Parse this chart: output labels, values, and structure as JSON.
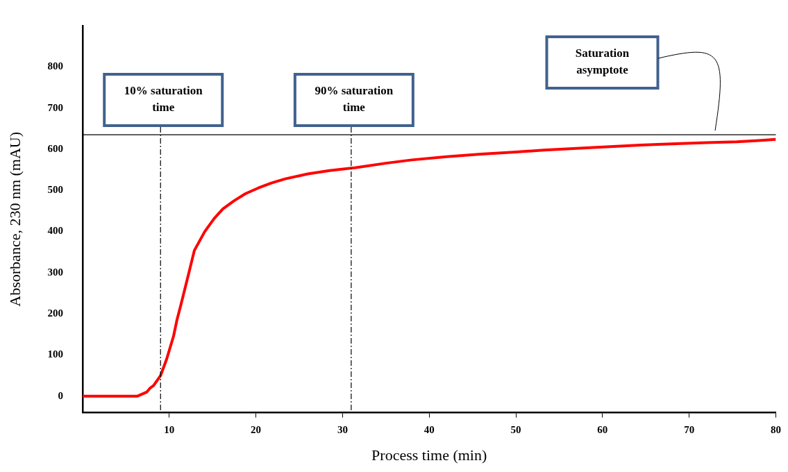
{
  "chart_data": {
    "type": "line",
    "xlabel": "Process time (min)",
    "ylabel": "Absorbance, 230 nm (mAU)",
    "xlim": [
      0,
      80
    ],
    "ylim": [
      -40,
      900
    ],
    "xticks": [
      10,
      20,
      30,
      40,
      50,
      60,
      70,
      80
    ],
    "yticks": [
      0,
      100,
      200,
      300,
      400,
      500,
      600,
      700,
      800
    ],
    "grid": false,
    "legend": false,
    "marker": "none",
    "line_style": "solid",
    "series": [
      {
        "color": "#ff0000",
        "x": [
          0,
          6.3,
          7.4,
          7.8,
          8.2,
          9,
          9.7,
          10.5,
          10.9,
          11.3,
          12.2,
          12.9,
          14.1,
          15.2,
          16.2,
          17.5,
          18.8,
          20.3,
          21.8,
          23.4,
          26,
          28.5,
          31.4,
          35,
          38,
          42,
          46,
          50,
          53.2,
          57,
          60.5,
          64.4,
          68,
          72,
          75.5,
          78,
          80
        ],
        "values": [
          0,
          0,
          10,
          20,
          26,
          50,
          90,
          146,
          186,
          218,
          294,
          354,
          400,
          432,
          455,
          475,
          492,
          506,
          518,
          528,
          540,
          548,
          555,
          566,
          574,
          582,
          588,
          593,
          598,
          602,
          606,
          610,
          613,
          616,
          618,
          621,
          624
        ]
      }
    ],
    "ref_lines": [
      {
        "axis": "x",
        "value": 9,
        "label": "10% saturation time",
        "color": "#000000",
        "line_style": "dashed"
      },
      {
        "axis": "x",
        "value": 31,
        "label": "90% saturation time",
        "color": "#000000",
        "line_style": "dashed"
      },
      {
        "axis": "y",
        "value": 635,
        "color": "#000000",
        "line_style": "solid"
      }
    ],
    "annotations": [
      "Saturation asymptote"
    ]
  }
}
